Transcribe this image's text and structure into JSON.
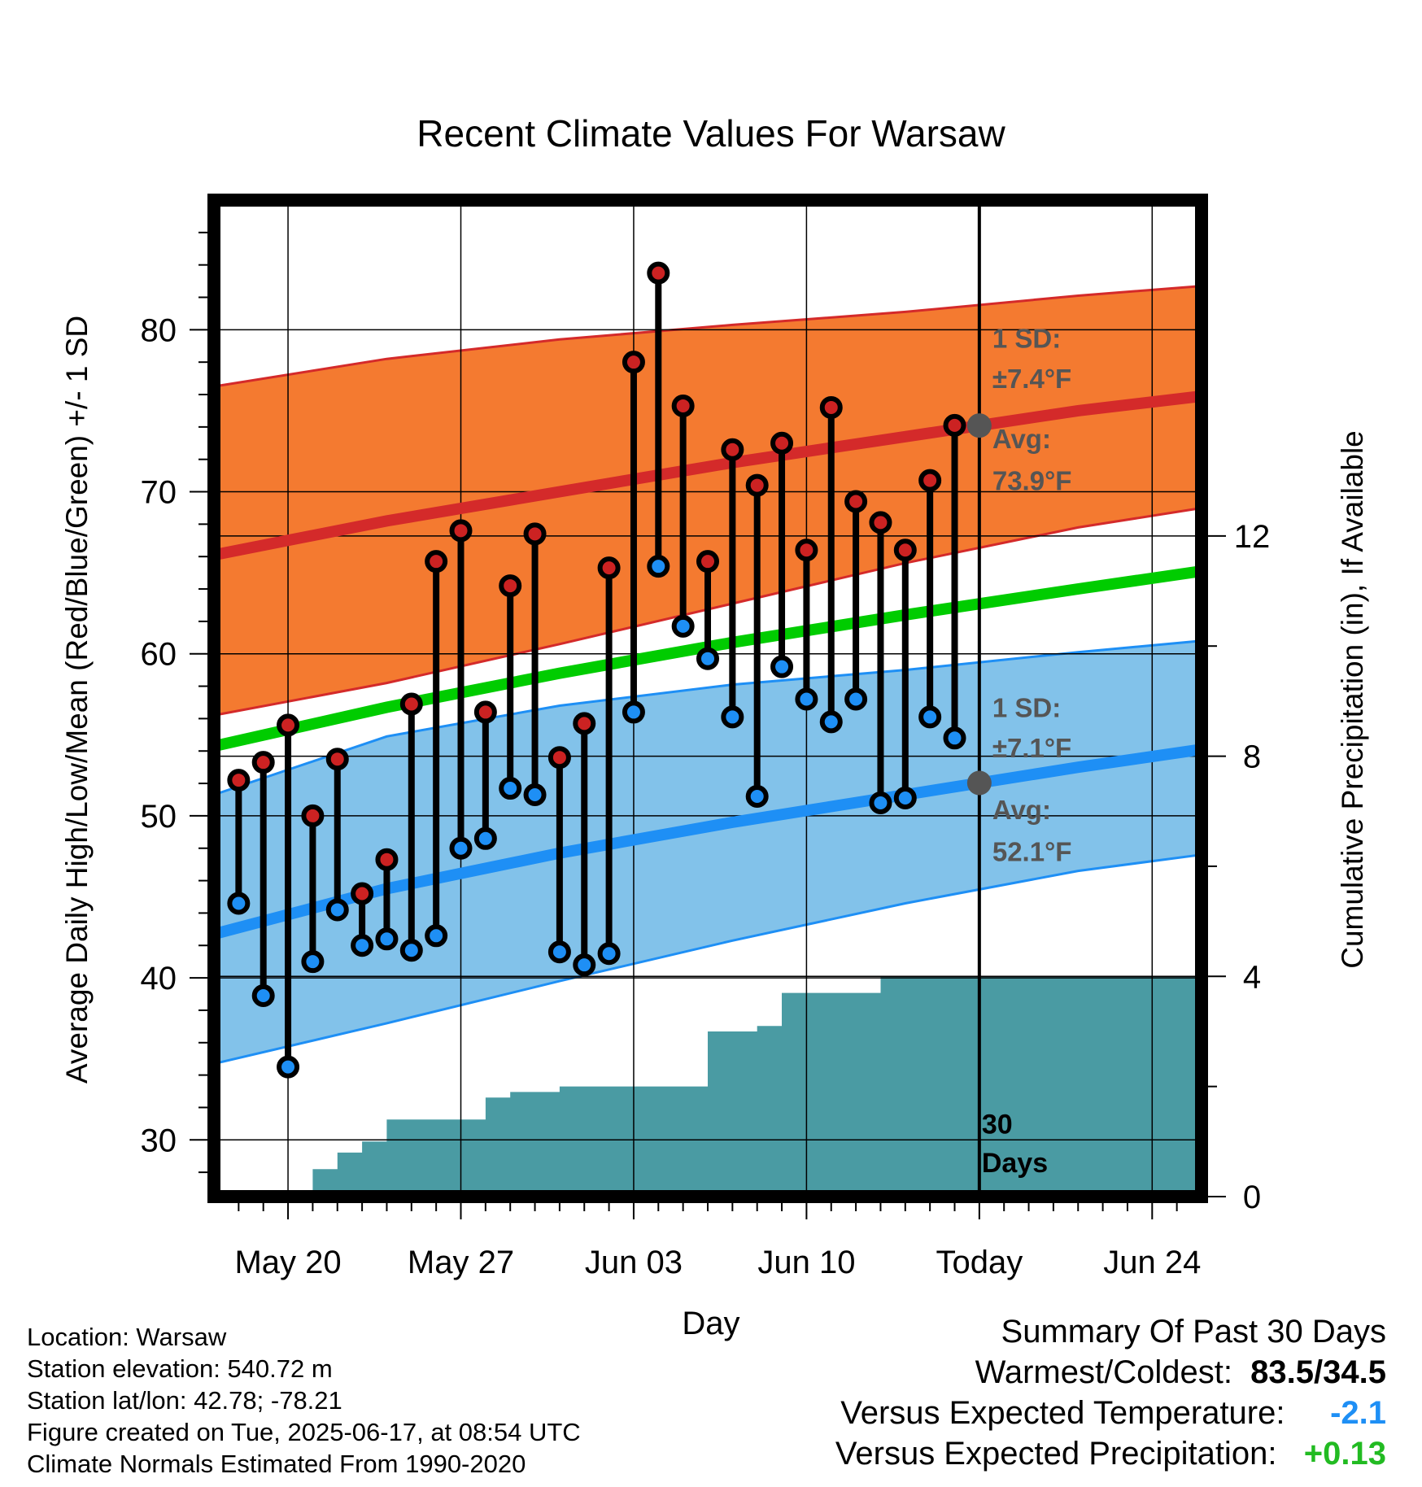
{
  "chart_data": {
    "type": "line",
    "title": "Recent Climate Values For Warsaw",
    "xlabel": "Day",
    "ylabel": "Average Daily High/Low/Mean (Red/Blue/Green) +/- 1 SD",
    "y2label": "Cumulative Precipitation (in), If Available",
    "ylim": [
      26.5,
      88
    ],
    "y2lim": [
      0,
      18.1
    ],
    "yticks": [
      "30",
      "40",
      "50",
      "60",
      "70",
      "80"
    ],
    "y2ticks": [
      "0",
      "4",
      "8",
      "12"
    ],
    "xlim": [
      "2025-05-17",
      "2025-06-26"
    ],
    "xticks": [
      {
        "date": "2025-05-20",
        "label": "May 20"
      },
      {
        "date": "2025-05-27",
        "label": "May 27"
      },
      {
        "date": "2025-06-03",
        "label": "Jun 03"
      },
      {
        "date": "2025-06-10",
        "label": "Jun 10"
      },
      {
        "date": "2025-06-17",
        "label": "Today"
      },
      {
        "date": "2025-06-24",
        "label": "Jun 24"
      }
    ],
    "grid": true,
    "today": "2025-06-17",
    "days_label": "30\nDays",
    "normals": {
      "dates": [
        "2025-05-17",
        "2025-05-24",
        "2025-05-31",
        "2025-06-07",
        "2025-06-14",
        "2025-06-21",
        "2025-06-26"
      ],
      "high_avg": [
        66.1,
        68.2,
        70.0,
        71.8,
        73.4,
        75.0,
        75.9
      ],
      "high_upper": [
        76.5,
        78.2,
        79.4,
        80.3,
        81.1,
        82.1,
        82.7
      ],
      "high_lower": [
        56.2,
        58.2,
        60.6,
        63.1,
        65.6,
        67.8,
        69.0
      ],
      "low_avg": [
        42.7,
        45.5,
        47.7,
        49.6,
        51.3,
        53.0,
        54.1
      ],
      "low_upper": [
        51.3,
        54.9,
        56.8,
        58.1,
        59.0,
        60.1,
        60.8
      ],
      "low_lower": [
        34.7,
        37.2,
        39.8,
        42.3,
        44.6,
        46.6,
        47.6
      ],
      "mean_avg": [
        54.3,
        56.7,
        58.8,
        60.7,
        62.4,
        64.0,
        65.1
      ]
    },
    "series": [
      {
        "name": "High",
        "dates": [
          "2025-05-18",
          "2025-05-19",
          "2025-05-20",
          "2025-05-21",
          "2025-05-22",
          "2025-05-23",
          "2025-05-24",
          "2025-05-25",
          "2025-05-26",
          "2025-05-27",
          "2025-05-28",
          "2025-05-29",
          "2025-05-30",
          "2025-05-31",
          "2025-06-01",
          "2025-06-02",
          "2025-06-03",
          "2025-06-04",
          "2025-06-05",
          "2025-06-06",
          "2025-06-07",
          "2025-06-08",
          "2025-06-09",
          "2025-06-10",
          "2025-06-11",
          "2025-06-12",
          "2025-06-13",
          "2025-06-14",
          "2025-06-15",
          "2025-06-16"
        ],
        "values": [
          52.2,
          53.3,
          55.6,
          50.0,
          53.5,
          45.2,
          47.3,
          56.9,
          65.7,
          67.6,
          56.4,
          64.2,
          67.4,
          53.6,
          55.7,
          65.3,
          78.0,
          83.5,
          75.3,
          65.7,
          72.6,
          70.4,
          73.0,
          66.4,
          75.2,
          69.4,
          68.1,
          66.4,
          70.7,
          74.1
        ]
      },
      {
        "name": "Low",
        "dates": [
          "2025-05-18",
          "2025-05-19",
          "2025-05-20",
          "2025-05-21",
          "2025-05-22",
          "2025-05-23",
          "2025-05-24",
          "2025-05-25",
          "2025-05-26",
          "2025-05-27",
          "2025-05-28",
          "2025-05-29",
          "2025-05-30",
          "2025-05-31",
          "2025-06-01",
          "2025-06-02",
          "2025-06-03",
          "2025-06-04",
          "2025-06-05",
          "2025-06-06",
          "2025-06-07",
          "2025-06-08",
          "2025-06-09",
          "2025-06-10",
          "2025-06-11",
          "2025-06-12",
          "2025-06-13",
          "2025-06-14",
          "2025-06-15",
          "2025-06-16"
        ],
        "values": [
          44.6,
          38.9,
          34.5,
          41.0,
          44.2,
          42.0,
          42.4,
          41.7,
          42.6,
          48.0,
          48.6,
          51.7,
          51.3,
          41.6,
          40.8,
          41.5,
          56.4,
          65.4,
          61.7,
          59.7,
          56.1,
          51.2,
          59.2,
          57.2,
          55.8,
          57.2,
          50.8,
          51.1,
          56.1,
          54.8
        ]
      }
    ],
    "precip": {
      "dates": [
        "2025-05-20",
        "2025-05-21",
        "2025-05-22",
        "2025-05-23",
        "2025-05-24",
        "2025-05-27",
        "2025-05-28",
        "2025-05-29",
        "2025-05-30",
        "2025-05-31",
        "2025-06-05",
        "2025-06-06",
        "2025-06-07",
        "2025-06-08",
        "2025-06-09",
        "2025-06-12",
        "2025-06-13",
        "2025-06-26"
      ],
      "values": [
        0.0,
        0.5,
        0.8,
        1.0,
        1.4,
        1.4,
        1.8,
        1.9,
        1.9,
        2.0,
        2.0,
        3.0,
        3.0,
        3.1,
        3.7,
        3.7,
        4.0,
        4.0
      ]
    },
    "annotations": {
      "high_sd_label": "1 SD:",
      "high_sd_value": "±7.4°F",
      "high_avg_label": "Avg:",
      "high_avg_value": "73.9°F",
      "low_sd_label": "1 SD:",
      "low_sd_value": "±7.1°F",
      "low_avg_label": "Avg:",
      "low_avg_value": "52.1°F"
    },
    "colors": {
      "high_band": "#f47a30",
      "high_line": "#d42a2a",
      "low_band": "#82c2ea",
      "low_line": "#1e8ff5",
      "mean_line": "#00cc00",
      "precip": "#4a9ba3",
      "high_marker": "#cc2222",
      "low_marker": "#1e8ff5",
      "annotation": "#555555",
      "today_avg_marker": "#555555"
    }
  },
  "info": {
    "location": "Location: Warsaw",
    "elevation": "Station elevation: 540.72 m",
    "latlon": "Station lat/lon: 42.78; -78.21",
    "created": "Figure created on Tue, 2025-06-17, at 08:54 UTC",
    "normals": "Climate Normals Estimated From 1990-2020"
  },
  "summary": {
    "title": "Summary Of Past 30 Days",
    "warm_cold_label": "Warmest/Coldest:",
    "warm_cold_value": "83.5/34.5",
    "temp_label": "Versus Expected Temperature:",
    "temp_value": "-2.1",
    "temp_color": "#1e8ff5",
    "precip_label": "Versus Expected Precipitation:",
    "precip_value": "+0.13",
    "precip_color": "#22bb22"
  }
}
